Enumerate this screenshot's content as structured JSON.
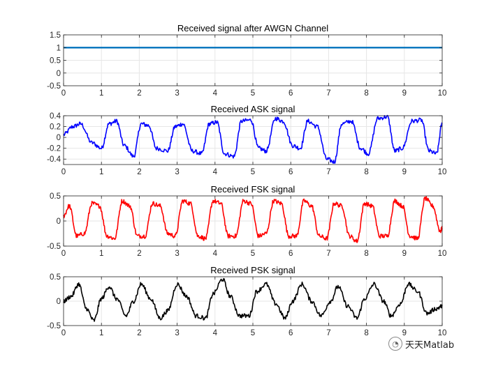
{
  "chart_data": [
    {
      "type": "line",
      "title": "Received signal after AWGN Channel",
      "xlim": [
        0,
        10
      ],
      "ylim": [
        -0.5,
        1.5
      ],
      "xticks": [
        0,
        1,
        2,
        3,
        4,
        5,
        6,
        7,
        8,
        9,
        10
      ],
      "xtick_labels": [
        "0",
        "1",
        "2",
        "3",
        "4",
        "5",
        "6",
        "7",
        "8",
        "9",
        "10"
      ],
      "yticks": [
        -0.5,
        0,
        0.5,
        1,
        1.5
      ],
      "ytick_labels": [
        "-0.5",
        "0",
        "0.5",
        "1",
        "1.5"
      ],
      "grid": true,
      "color": "#0072bd",
      "series": [
        {
          "x": [
            0,
            10
          ],
          "y": [
            1,
            1
          ]
        }
      ]
    },
    {
      "type": "line",
      "title": "Received ASK signal",
      "xlim": [
        0,
        10
      ],
      "ylim": [
        -0.5,
        0.4
      ],
      "xticks": [
        0,
        1,
        2,
        3,
        4,
        5,
        6,
        7,
        8,
        9,
        10
      ],
      "xtick_labels": [
        "0",
        "1",
        "2",
        "3",
        "4",
        "5",
        "6",
        "7",
        "8",
        "9",
        "10"
      ],
      "yticks": [
        -0.4,
        -0.2,
        0,
        0.2,
        0.4
      ],
      "ytick_labels": [
        "-0.4",
        "-0.2",
        "0",
        "0.2",
        "0.4"
      ],
      "grid": true,
      "color": "#0000ff",
      "series": [
        {
          "x": [
            0,
            0.25,
            0.45,
            0.75,
            1.0,
            1.2,
            1.4,
            1.6,
            1.85,
            2.05,
            2.25,
            2.45,
            2.75,
            2.95,
            3.15,
            3.4,
            3.65,
            3.85,
            4.05,
            4.25,
            4.5,
            4.7,
            4.95,
            5.15,
            5.35,
            5.6,
            5.8,
            6.05,
            6.25,
            6.45,
            6.7,
            6.95,
            7.15,
            7.35,
            7.6,
            7.85,
            8.05,
            8.3,
            8.55,
            8.75,
            8.95,
            9.2,
            9.45,
            9.65,
            9.85,
            10.0
          ],
          "y": [
            0.05,
            0.2,
            0.25,
            -0.1,
            -0.2,
            0.25,
            0.3,
            -0.15,
            -0.35,
            0.25,
            0.22,
            -0.2,
            -0.25,
            0.2,
            0.25,
            -0.25,
            -0.3,
            0.25,
            0.28,
            -0.3,
            -0.35,
            0.3,
            0.32,
            -0.2,
            -0.25,
            0.35,
            0.3,
            -0.15,
            -0.2,
            0.3,
            0.2,
            -0.4,
            -0.45,
            0.25,
            0.3,
            -0.2,
            -0.3,
            0.35,
            0.38,
            -0.25,
            -0.2,
            0.3,
            0.32,
            -0.25,
            -0.3,
            0.25
          ]
        }
      ]
    },
    {
      "type": "line",
      "title": "Received FSK signal",
      "xlim": [
        0,
        10
      ],
      "ylim": [
        -0.5,
        0.5
      ],
      "xticks": [
        0,
        1,
        2,
        3,
        4,
        5,
        6,
        7,
        8,
        9,
        10
      ],
      "xtick_labels": [
        "0",
        "1",
        "2",
        "3",
        "4",
        "5",
        "6",
        "7",
        "8",
        "9",
        "10"
      ],
      "yticks": [
        -0.5,
        0,
        0.5
      ],
      "ytick_labels": [
        "-0.5",
        "0",
        "0.5"
      ],
      "grid": true,
      "color": "#ff0000",
      "series": [
        {
          "x": [
            0,
            0.15,
            0.35,
            0.55,
            0.75,
            0.95,
            1.15,
            1.35,
            1.55,
            1.75,
            1.95,
            2.15,
            2.35,
            2.55,
            2.75,
            2.95,
            3.15,
            3.35,
            3.55,
            3.75,
            3.95,
            4.15,
            4.35,
            4.55,
            4.75,
            4.95,
            5.15,
            5.35,
            5.55,
            5.75,
            5.95,
            6.15,
            6.35,
            6.55,
            6.75,
            6.95,
            7.15,
            7.35,
            7.55,
            7.75,
            7.95,
            8.15,
            8.35,
            8.55,
            8.75,
            8.95,
            9.15,
            9.35,
            9.55,
            9.75,
            9.95,
            10.0
          ],
          "y": [
            0.1,
            0.3,
            -0.3,
            -0.25,
            0.35,
            0.3,
            -0.3,
            -0.35,
            0.4,
            0.3,
            -0.3,
            -0.3,
            0.35,
            0.3,
            -0.25,
            -0.3,
            0.4,
            0.35,
            -0.3,
            -0.35,
            0.4,
            0.35,
            -0.3,
            -0.3,
            0.4,
            0.35,
            -0.3,
            -0.25,
            0.4,
            0.35,
            -0.3,
            -0.3,
            0.4,
            0.3,
            -0.3,
            -0.35,
            0.35,
            0.3,
            -0.3,
            -0.4,
            0.35,
            0.3,
            -0.3,
            -0.3,
            0.4,
            0.3,
            -0.3,
            -0.35,
            0.45,
            0.3,
            -0.2,
            -0.15
          ]
        }
      ]
    },
    {
      "type": "line",
      "title": "Received PSK signal",
      "xlim": [
        0,
        10
      ],
      "ylim": [
        -0.5,
        0.5
      ],
      "xticks": [
        0,
        1,
        2,
        3,
        4,
        5,
        6,
        7,
        8,
        9,
        10
      ],
      "xtick_labels": [
        "0",
        "1",
        "2",
        "3",
        "4",
        "5",
        "6",
        "7",
        "8",
        "9",
        "10"
      ],
      "yticks": [
        -0.5,
        0,
        0.5
      ],
      "ytick_labels": [
        "-0.5",
        "0",
        "0.5"
      ],
      "grid": true,
      "color": "#000000",
      "series": [
        {
          "x": [
            0,
            0.2,
            0.4,
            0.6,
            0.8,
            1.0,
            1.2,
            1.4,
            1.65,
            1.85,
            2.05,
            2.3,
            2.55,
            2.75,
            3.0,
            3.25,
            3.5,
            3.75,
            3.95,
            4.2,
            4.4,
            4.65,
            4.9,
            5.1,
            5.35,
            5.6,
            5.85,
            6.05,
            6.3,
            6.55,
            6.8,
            7.05,
            7.25,
            7.5,
            7.75,
            7.95,
            8.2,
            8.45,
            8.65,
            8.9,
            9.1,
            9.35,
            9.6,
            9.85,
            10.0
          ],
          "y": [
            0.0,
            0.1,
            0.35,
            -0.15,
            -0.4,
            0.05,
            0.3,
            0.05,
            -0.3,
            0.0,
            0.35,
            0.05,
            -0.35,
            -0.2,
            0.35,
            0.1,
            -0.3,
            -0.35,
            0.15,
            0.45,
            0.1,
            -0.3,
            -0.3,
            0.2,
            0.35,
            -0.05,
            -0.35,
            0.0,
            0.35,
            0.0,
            -0.3,
            0.0,
            0.3,
            -0.1,
            -0.35,
            0.05,
            0.35,
            0.0,
            -0.3,
            -0.05,
            0.35,
            0.2,
            -0.25,
            -0.15,
            -0.1
          ]
        }
      ]
    }
  ],
  "watermark": {
    "text": "天天Matlab",
    "icon": "wechat-icon"
  }
}
